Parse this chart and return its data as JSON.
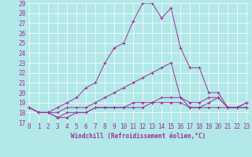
{
  "xlabel": "Windchill (Refroidissement éolien,°C)",
  "bg_color": "#b2e8e8",
  "line_color": "#993399",
  "grid_color": "#ffffff",
  "xmin": 0,
  "xmax": 23,
  "ymin": 17,
  "ymax": 29,
  "lines": [
    [
      18.5,
      18.0,
      18.0,
      18.5,
      19.0,
      19.5,
      20.5,
      21.0,
      23.0,
      24.5,
      25.0,
      27.2,
      29.0,
      29.0,
      27.5,
      28.5,
      24.5,
      22.5,
      22.5,
      20.0,
      20.0,
      18.5,
      18.5,
      19.0
    ],
    [
      18.5,
      18.0,
      18.0,
      18.0,
      18.5,
      18.5,
      18.5,
      19.0,
      19.5,
      20.0,
      20.5,
      21.0,
      21.5,
      22.0,
      22.5,
      23.0,
      19.5,
      19.0,
      19.0,
      19.5,
      19.5,
      18.5,
      18.5,
      19.0
    ],
    [
      18.5,
      18.0,
      18.0,
      17.5,
      18.0,
      18.0,
      18.0,
      18.5,
      18.5,
      18.5,
      18.5,
      19.0,
      19.0,
      19.0,
      19.5,
      19.5,
      19.5,
      18.5,
      18.5,
      19.0,
      19.5,
      18.5,
      18.5,
      18.5
    ],
    [
      18.5,
      18.0,
      18.0,
      17.5,
      17.5,
      18.0,
      18.0,
      18.5,
      18.5,
      18.5,
      18.5,
      18.5,
      18.5,
      19.0,
      19.0,
      19.0,
      19.0,
      18.5,
      18.5,
      18.5,
      18.5,
      18.5,
      18.5,
      18.5
    ]
  ],
  "tick_fontsize": 5.5,
  "xlabel_fontsize": 5.5
}
